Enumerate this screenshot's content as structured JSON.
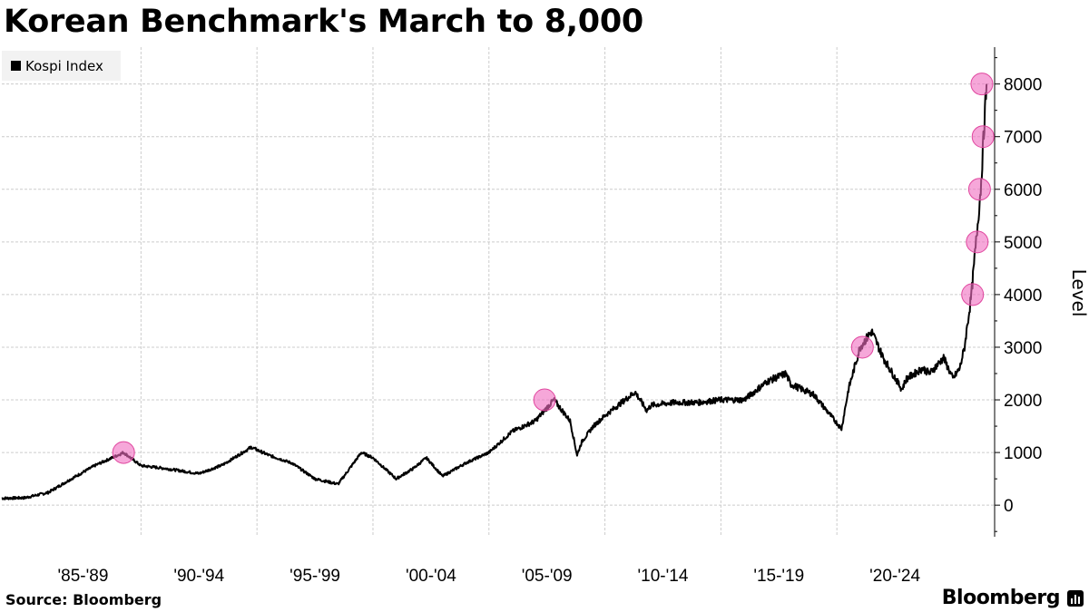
{
  "title": "Korean Benchmark's March to 8,000",
  "source": "Source: Bloomberg",
  "brand": "Bloomberg",
  "colors": {
    "line": "#000000",
    "marker": "#f06cc0",
    "grid": "#cccccc"
  },
  "chart_data": {
    "type": "line",
    "series": [
      {
        "name": "Kospi Index",
        "x": [
          1984.0,
          1985.0,
          1986.0,
          1987.0,
          1988.0,
          1989.25,
          1990.0,
          1991.0,
          1992.5,
          1993.5,
          1994.75,
          1995.5,
          1996.5,
          1997.5,
          1998.5,
          1999.5,
          2000.0,
          2001.0,
          2001.75,
          2002.3,
          2003.0,
          2004.0,
          2005.0,
          2006.0,
          2007.0,
          2007.8,
          2008.5,
          2008.8,
          2009.0,
          2009.5,
          2010.0,
          2011.3,
          2011.8,
          2012.0,
          2013.0,
          2014.0,
          2015.0,
          2016.0,
          2017.0,
          2017.8,
          2018.0,
          2019.0,
          2020.2,
          2020.5,
          2021.0,
          2021.5,
          2022.0,
          2022.8,
          2023.0,
          2023.7,
          2024.0,
          2024.6,
          2025.0,
          2025.3,
          2025.5,
          2025.8,
          2026.0,
          2026.2,
          2026.45
        ],
        "values": [
          130,
          140,
          240,
          500,
          750,
          1000,
          750,
          700,
          600,
          760,
          1100,
          950,
          800,
          500,
          400,
          1000,
          900,
          500,
          700,
          900,
          550,
          800,
          1000,
          1400,
          1600,
          2000,
          1600,
          950,
          1200,
          1500,
          1700,
          2150,
          1800,
          1900,
          1950,
          1950,
          2000,
          2000,
          2350,
          2500,
          2300,
          2100,
          1450,
          2200,
          3000,
          3300,
          2800,
          2200,
          2400,
          2600,
          2500,
          2800,
          2400,
          2600,
          3000,
          4000,
          5000,
          6000,
          8000
        ]
      }
    ],
    "highlighted_points": [
      {
        "x": 1989.25,
        "y": 1000
      },
      {
        "x": 2007.4,
        "y": 2000
      },
      {
        "x": 2021.1,
        "y": 3000
      },
      {
        "x": 2025.85,
        "y": 4000
      },
      {
        "x": 2026.05,
        "y": 5000
      },
      {
        "x": 2026.15,
        "y": 6000
      },
      {
        "x": 2026.3,
        "y": 7000
      },
      {
        "x": 2026.25,
        "y": 8000
      }
    ],
    "x_tick_labels": [
      "'85-'89",
      "'90-'94",
      "'95-'99",
      "'00-'04",
      "'05-'09",
      "'10-'14",
      "'15-'19",
      "'20-'24"
    ],
    "y_ticks": [
      0,
      1000,
      2000,
      3000,
      4000,
      5000,
      6000,
      7000,
      8000
    ],
    "y_tick_labels": [
      "0",
      "1000",
      "2000",
      "3000",
      "4000",
      "5000",
      "6000",
      "7000",
      "8000"
    ],
    "xlim": [
      1984.0,
      2026.8
    ],
    "ylim": [
      -600,
      8700
    ],
    "ylabel": "Level",
    "grid": true,
    "legend_position": "top-left"
  }
}
